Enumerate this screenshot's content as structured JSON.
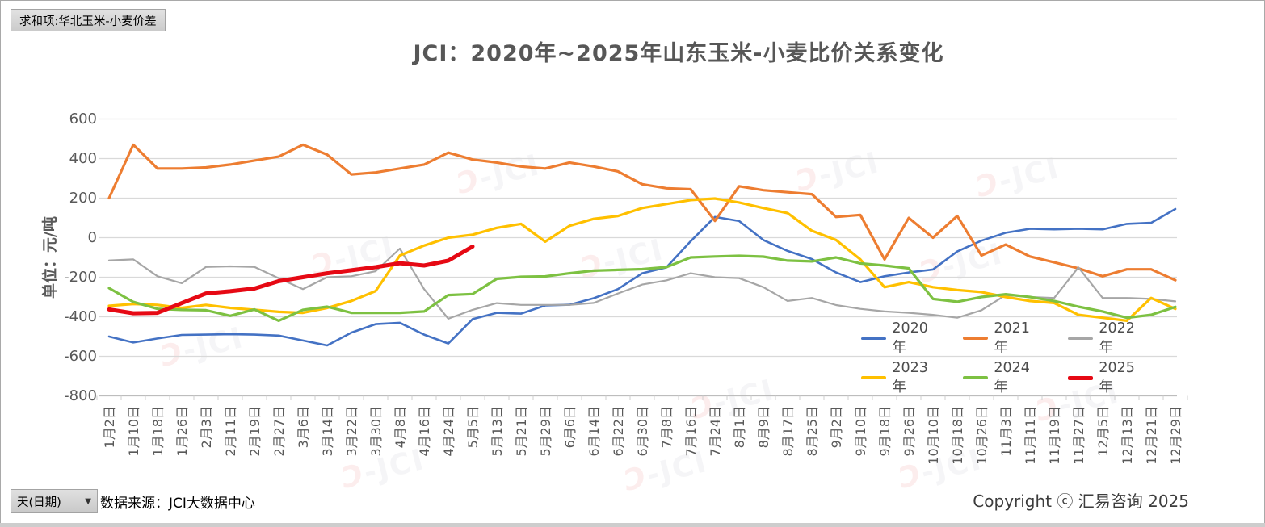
{
  "pivot_field_button": "求和项:华北玉米-小麦价差",
  "title": "JCI：2020年~2025年山东玉米-小麦比价关系变化",
  "y_axis": {
    "title": "单位：元/吨",
    "ticks": [
      600,
      400,
      200,
      0,
      -200,
      -400,
      -600,
      -800
    ]
  },
  "watermark_text": "JCI",
  "footer": {
    "axis_field_button": "天(日期)",
    "dropdown_icon": "▼",
    "source": "数据来源：JCI大数据中心",
    "copyright": "Copyright ⓒ 汇易咨询 2025"
  },
  "chart_data": {
    "type": "line",
    "title": "JCI：2020年~2025年山东玉米-小麦比价关系变化",
    "xlabel": "",
    "ylabel": "单位：元/吨",
    "ylim": [
      -800,
      600
    ],
    "grid": "horizontal-only",
    "legend_position": "inside lower-right, two rows",
    "categories": [
      "1月2日",
      "1月10日",
      "1月18日",
      "1月26日",
      "2月3日",
      "2月11日",
      "2月19日",
      "2月27日",
      "3月6日",
      "3月14日",
      "3月22日",
      "3月30日",
      "4月8日",
      "4月16日",
      "4月24日",
      "5月5日",
      "5月13日",
      "5月21日",
      "5月29日",
      "6月6日",
      "6月14日",
      "6月22日",
      "6月30日",
      "7月8日",
      "7月16日",
      "7月24日",
      "8月1日",
      "8月9日",
      "8月17日",
      "8月25日",
      "9月2日",
      "9月10日",
      "9月18日",
      "9月26日",
      "10月10日",
      "10月18日",
      "10月26日",
      "11月3日",
      "11月11日",
      "11月19日",
      "11月27日",
      "12月5日",
      "12月13日",
      "12月21日",
      "12月29日"
    ],
    "series": [
      {
        "name": "2020年",
        "color": "#4472C4",
        "width": 2.6,
        "values": [
          -500,
          -530,
          -510,
          -492,
          -490,
          -488,
          -490,
          -495,
          -520,
          -545,
          -480,
          -437,
          -430,
          -490,
          -535,
          -412,
          -380,
          -384,
          -343,
          -339,
          -306,
          -260,
          -180,
          -150,
          -18,
          105,
          84,
          -12,
          -67,
          -108,
          -176,
          -225,
          -195,
          -176,
          -161,
          -70,
          -15,
          25,
          45,
          42,
          45,
          42,
          70,
          75,
          145
        ]
      },
      {
        "name": "2021年",
        "color": "#ED7D31",
        "width": 3.2,
        "values": [
          200,
          470,
          350,
          350,
          355,
          370,
          390,
          410,
          470,
          420,
          320,
          330,
          350,
          370,
          430,
          395,
          380,
          360,
          350,
          380,
          360,
          335,
          270,
          250,
          245,
          85,
          260,
          240,
          230,
          220,
          105,
          115,
          -110,
          100,
          0,
          110,
          -90,
          -35,
          -95,
          -125,
          -155,
          -195,
          -160,
          -160,
          -215
        ]
      },
      {
        "name": "2022年",
        "color": "#A6A6A6",
        "width": 2.2,
        "values": [
          -115,
          -110,
          -195,
          -230,
          -148,
          -145,
          -148,
          -205,
          -260,
          -200,
          -195,
          -170,
          -55,
          -260,
          -410,
          -365,
          -331,
          -340,
          -340,
          -340,
          -330,
          -282,
          -237,
          -216,
          -180,
          -200,
          -205,
          -250,
          -320,
          -305,
          -341,
          -360,
          -373,
          -380,
          -390,
          -405,
          -367,
          -290,
          -300,
          -305,
          -150,
          -305,
          -305,
          -310,
          -322
        ]
      },
      {
        "name": "2023年",
        "color": "#FFC000",
        "width": 3.2,
        "values": [
          -345,
          -335,
          -340,
          -355,
          -340,
          -355,
          -365,
          -375,
          -380,
          -355,
          -320,
          -270,
          -90,
          -40,
          0,
          15,
          50,
          70,
          -20,
          60,
          95,
          110,
          150,
          170,
          190,
          198,
          178,
          150,
          124,
          35,
          -12,
          -110,
          -250,
          -225,
          -250,
          -265,
          -275,
          -300,
          -320,
          -330,
          -390,
          -405,
          -420,
          -305,
          -360
        ]
      },
      {
        "name": "2024年",
        "color": "#7DC142",
        "width": 3.2,
        "values": [
          -255,
          -325,
          -360,
          -365,
          -367,
          -395,
          -363,
          -420,
          -365,
          -349,
          -380,
          -380,
          -380,
          -373,
          -290,
          -285,
          -208,
          -198,
          -196,
          -180,
          -167,
          -163,
          -159,
          -149,
          -100,
          -95,
          -92,
          -96,
          -116,
          -120,
          -100,
          -130,
          -141,
          -155,
          -310,
          -324,
          -300,
          -286,
          -300,
          -320,
          -349,
          -373,
          -405,
          -390,
          -350
        ]
      },
      {
        "name": "2025年",
        "color": "#E60914",
        "width": 5,
        "values": [
          -363,
          -382,
          -380,
          -331,
          -282,
          -271,
          -257,
          -220,
          -200,
          -180,
          -165,
          -149,
          -129,
          -141,
          -116,
          -45,
          null,
          null,
          null,
          null,
          null,
          null,
          null,
          null,
          null,
          null,
          null,
          null,
          null,
          null,
          null,
          null,
          null,
          null,
          null,
          null,
          null,
          null,
          null,
          null,
          null,
          null,
          null,
          null,
          null
        ]
      }
    ]
  }
}
